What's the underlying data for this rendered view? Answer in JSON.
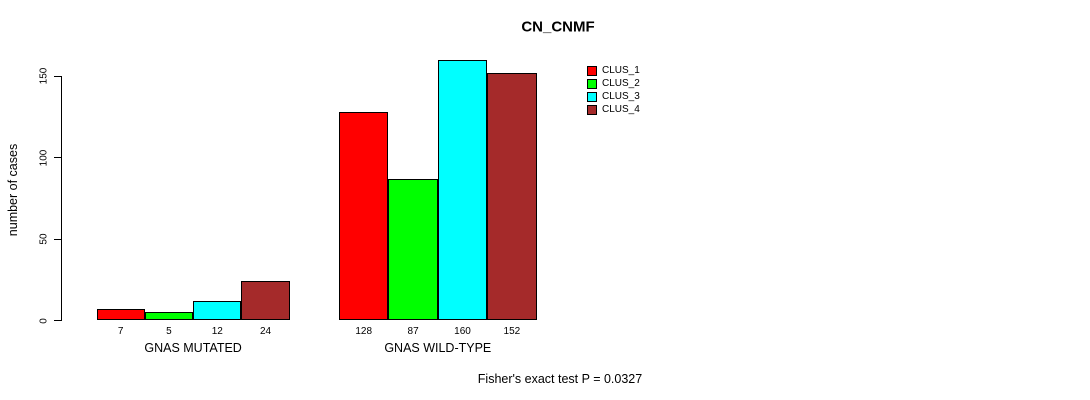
{
  "chart_data": {
    "type": "bar",
    "title": "CN_CNMF",
    "ylabel": "number of cases",
    "xlabel": "",
    "categories": [
      "GNAS MUTATED",
      "GNAS WILD-TYPE"
    ],
    "series": [
      {
        "name": "CLUS_1",
        "color": "#FF0000",
        "values": [
          7,
          128
        ]
      },
      {
        "name": "CLUS_2",
        "color": "#00FF00",
        "values": [
          5,
          87
        ]
      },
      {
        "name": "CLUS_3",
        "color": "#00FFFF",
        "values": [
          12,
          160
        ]
      },
      {
        "name": "CLUS_4",
        "color": "#A52A2A",
        "values": [
          24,
          152
        ]
      }
    ],
    "yticks": [
      0,
      50,
      100,
      150
    ],
    "ylim": [
      0,
      160
    ],
    "grid": false,
    "bar_value_labels": true,
    "legend_position": "top-right-of-plot",
    "annotation": "Fisher's exact test P = 0.0327"
  },
  "colors": {
    "axis": "#000000",
    "text": "#000000",
    "background": "#FFFFFF"
  }
}
